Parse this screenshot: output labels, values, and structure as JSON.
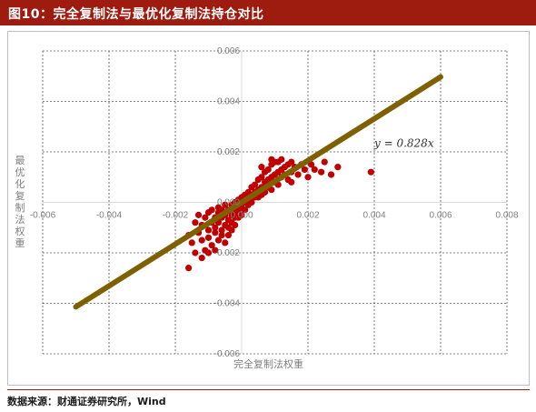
{
  "header": {
    "title": "图10：完全复制法与最优化复制法持仓对比"
  },
  "footer": {
    "source": "数据来源：财通证券研究所，Wind"
  },
  "colors": {
    "header_bg": "#9e1b10",
    "points": "#c00000",
    "fit_line": "#7f6000",
    "grid": "#595959"
  },
  "chart_data": {
    "type": "scatter",
    "xlabel": "完全复制法权重",
    "ylabel": "最优化复制法权重",
    "xlim": [
      -0.006,
      0.008
    ],
    "ylim": [
      -0.006,
      0.006
    ],
    "x_ticks": [
      "-0.006",
      "-0.004",
      "-0.002",
      "0.000",
      "0.002",
      "0.004",
      "0.006",
      "0.008"
    ],
    "y_ticks": [
      "-0.006",
      "-0.004",
      "-0.002",
      "0.000",
      "0.002",
      "0.004",
      "0.006"
    ],
    "grid": true,
    "fit_line": {
      "slope": 0.828,
      "x_range": [
        -0.005,
        0.006
      ],
      "label": "y = 0.828x"
    },
    "points": [
      [
        -0.0016,
        -0.0026
      ],
      [
        -0.0015,
        -0.0016
      ],
      [
        -0.0014,
        -0.0008
      ],
      [
        -0.0013,
        -0.0012
      ],
      [
        -0.0013,
        -0.0005
      ],
      [
        -0.0012,
        -0.0015
      ],
      [
        -0.0012,
        -0.0009
      ],
      [
        -0.0011,
        -0.0019
      ],
      [
        -0.0011,
        -0.0006
      ],
      [
        -0.001,
        -0.0011
      ],
      [
        -0.001,
        -0.0004
      ],
      [
        -0.001,
        -0.0014
      ],
      [
        -0.0009,
        -0.0008
      ],
      [
        -0.0009,
        -0.0017
      ],
      [
        -0.0009,
        -0.0003
      ],
      [
        -0.0008,
        -0.0012
      ],
      [
        -0.0008,
        -0.0006
      ],
      [
        -0.0008,
        -0.001
      ],
      [
        -0.0007,
        -0.0015
      ],
      [
        -0.0007,
        -0.0004
      ],
      [
        -0.0007,
        -0.0008
      ],
      [
        -0.0007,
        -0.0002
      ],
      [
        -0.0006,
        -0.0011
      ],
      [
        -0.0006,
        -0.0006
      ],
      [
        -0.0006,
        -0.0013
      ],
      [
        -0.0006,
        -0.0003
      ],
      [
        -0.0005,
        -0.0009
      ],
      [
        -0.0005,
        -0.0005
      ],
      [
        -0.0005,
        -0.0016
      ],
      [
        -0.0005,
        -0.0001
      ],
      [
        -0.0004,
        -0.0007
      ],
      [
        -0.0004,
        -0.001
      ],
      [
        -0.0004,
        -0.0003
      ],
      [
        -0.0004,
        -0.0013
      ],
      [
        -0.0003,
        -0.0005
      ],
      [
        -0.0003,
        -0.0008
      ],
      [
        -0.0003,
        -0.0001
      ],
      [
        -0.0003,
        -0.0011
      ],
      [
        -0.0002,
        -0.0004
      ],
      [
        -0.0002,
        -0.0006
      ],
      [
        -0.0002,
        0.0
      ],
      [
        -0.0002,
        -0.0009
      ],
      [
        -0.0001,
        -0.0003
      ],
      [
        -0.0001,
        0.0001
      ],
      [
        -0.0001,
        -0.0006
      ],
      [
        0.0,
        -0.0002
      ],
      [
        0.0,
        0.0002
      ],
      [
        0.0,
        -0.0005
      ],
      [
        0.0001,
        0.0
      ],
      [
        0.0001,
        0.0003
      ],
      [
        0.0001,
        -0.0003
      ],
      [
        0.0002,
        0.0001
      ],
      [
        0.0002,
        0.0004
      ],
      [
        0.0002,
        -0.0001
      ],
      [
        0.0003,
        0.0003
      ],
      [
        0.0003,
        0.0006
      ],
      [
        0.0003,
        0.0
      ],
      [
        0.0004,
        0.0004
      ],
      [
        0.0004,
        0.0007
      ],
      [
        0.0004,
        0.0002
      ],
      [
        0.0005,
        0.0005
      ],
      [
        0.0005,
        0.0009
      ],
      [
        0.0005,
        0.0002
      ],
      [
        0.0006,
        0.0006
      ],
      [
        0.0006,
        0.001
      ],
      [
        0.0006,
        0.0003
      ],
      [
        0.0007,
        0.0008
      ],
      [
        0.0007,
        0.0012
      ],
      [
        0.0007,
        0.0004
      ],
      [
        0.0008,
        0.0009
      ],
      [
        0.0008,
        0.0013
      ],
      [
        0.0008,
        0.0006
      ],
      [
        0.0009,
        0.001
      ],
      [
        0.0009,
        0.0015
      ],
      [
        0.0009,
        0.0005
      ],
      [
        0.001,
        0.0011
      ],
      [
        0.001,
        0.0008
      ],
      [
        0.001,
        0.0016
      ],
      [
        0.0011,
        0.0012
      ],
      [
        0.0011,
        0.0007
      ],
      [
        0.0012,
        0.0013
      ],
      [
        0.0012,
        0.001
      ],
      [
        0.0012,
        0.0017
      ],
      [
        0.0013,
        0.0011
      ],
      [
        0.0013,
        0.0014
      ],
      [
        0.0014,
        0.0009
      ],
      [
        0.0014,
        0.0015
      ],
      [
        0.0015,
        0.0012
      ],
      [
        0.0015,
        0.0008
      ],
      [
        0.0016,
        0.0014
      ],
      [
        0.0017,
        0.0011
      ],
      [
        0.0018,
        0.0015
      ],
      [
        0.0019,
        0.0013
      ],
      [
        0.002,
        0.001
      ],
      [
        0.0021,
        0.0015
      ],
      [
        0.0022,
        0.0013
      ],
      [
        0.0024,
        0.0012
      ],
      [
        0.0025,
        0.0016
      ],
      [
        0.0027,
        0.0011
      ],
      [
        0.0029,
        0.0014
      ],
      [
        0.0039,
        0.0012
      ],
      [
        -0.0016,
        -0.0013
      ],
      [
        -0.0014,
        -0.002
      ],
      [
        -0.0012,
        -0.0022
      ],
      [
        0.0006,
        0.0014
      ],
      [
        0.0009,
        0.0017
      ],
      [
        0.0011,
        0.0016
      ],
      [
        -0.0008,
        -0.0019
      ],
      [
        -0.001,
        -0.002
      ],
      [
        0.0015,
        0.0016
      ]
    ]
  }
}
